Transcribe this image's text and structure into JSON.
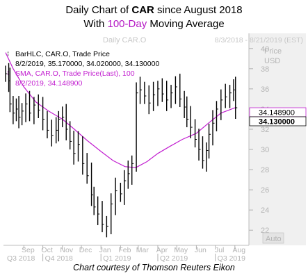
{
  "title": {
    "line1_prefix": "Daily Chart of ",
    "line1_ticker": "CAR",
    "line1_suffix": " since August 2018",
    "line2_prefix": "With ",
    "line2_highlight": "100-Day",
    "line2_suffix": " Moving Average"
  },
  "chart_header": {
    "watermark": "Daily CAR.O",
    "date_range": "8/3/2018 - 8/21/2019 (EST)"
  },
  "legend": {
    "bar_series": "BarHLC, CAR.O, Trade Price",
    "bar_values": "8/2/2019, 35.170000, 34.020000, 34.130000",
    "sma_series": "SMA, CAR.O, Trade Price(Last),  100",
    "sma_values": "8/2/2019, 34.148900"
  },
  "axis": {
    "price_label": "Price",
    "currency_label": "USD",
    "auto_label": "Auto"
  },
  "credit": "Chart courtesy of Thomson Reuters Eikon",
  "colors": {
    "price_bars": "#000000",
    "sma_line": "#c21fd0",
    "plot_background": "#ffffff",
    "axis_panel": "#ececec"
  },
  "chart_data": {
    "type": "line",
    "x_ticks": [
      "Sep",
      "Oct",
      "Nov",
      "Dec",
      "Jan",
      "Feb",
      "Mar",
      "Apr",
      "May",
      "Jun",
      "Jul",
      "Aug"
    ],
    "quarter_ticks": [
      "Q3 2018",
      "Q4 2018",
      "Q1 2019",
      "Q2 2019",
      "Q3 2019"
    ],
    "y_ticks": [
      22,
      24,
      26,
      28,
      30,
      32,
      34,
      36,
      38,
      40
    ],
    "ylim": [
      20.5,
      41.5
    ],
    "grid": false,
    "last_price_label": "34.130000",
    "sma_label": "34.148900",
    "series": [
      {
        "name": "BarHLC, CAR.O, Trade Price",
        "style": "hlc-bars",
        "points": [
          [
            "2018-08-03",
            37.5
          ],
          [
            "2018-08-08",
            36.8
          ],
          [
            "2018-08-10",
            34.5
          ],
          [
            "2018-08-15",
            33.6
          ],
          [
            "2018-08-20",
            34.0
          ],
          [
            "2018-08-24",
            33.2
          ],
          [
            "2018-08-29",
            33.8
          ],
          [
            "2018-09-04",
            34.5
          ],
          [
            "2018-09-10",
            33.6
          ],
          [
            "2018-09-17",
            34.4
          ],
          [
            "2018-09-24",
            33.9
          ],
          [
            "2018-10-01",
            33.0
          ],
          [
            "2018-10-08",
            31.9
          ],
          [
            "2018-10-15",
            31.4
          ],
          [
            "2018-10-22",
            31.9
          ],
          [
            "2018-10-26",
            33.0
          ],
          [
            "2018-11-01",
            33.2
          ],
          [
            "2018-11-07",
            32.0
          ],
          [
            "2018-11-13",
            30.8
          ],
          [
            "2018-11-19",
            29.6
          ],
          [
            "2018-11-26",
            30.5
          ],
          [
            "2018-12-03",
            28.6
          ],
          [
            "2018-12-10",
            27.4
          ],
          [
            "2018-12-17",
            25.5
          ],
          [
            "2018-12-21",
            24.3
          ],
          [
            "2018-12-27",
            23.6
          ],
          [
            "2019-01-03",
            22.6
          ],
          [
            "2019-01-10",
            22.4
          ],
          [
            "2019-01-17",
            24.6
          ],
          [
            "2019-01-24",
            25.9
          ],
          [
            "2019-02-01",
            25.6
          ],
          [
            "2019-02-07",
            26.9
          ],
          [
            "2019-02-13",
            27.6
          ],
          [
            "2019-02-19",
            28.6
          ],
          [
            "2019-02-26",
            35.6
          ],
          [
            "2019-03-04",
            35.9
          ],
          [
            "2019-03-11",
            35.3
          ],
          [
            "2019-03-18",
            34.6
          ],
          [
            "2019-03-25",
            35.4
          ],
          [
            "2019-04-01",
            36.0
          ],
          [
            "2019-04-08",
            35.5
          ],
          [
            "2019-04-15",
            34.9
          ],
          [
            "2019-04-22",
            35.6
          ],
          [
            "2019-04-29",
            36.2
          ],
          [
            "2019-05-06",
            35.0
          ],
          [
            "2019-05-13",
            34.2
          ],
          [
            "2019-05-17",
            33.0
          ],
          [
            "2019-05-23",
            32.2
          ],
          [
            "2019-05-30",
            31.0
          ],
          [
            "2019-06-05",
            30.0
          ],
          [
            "2019-06-11",
            28.9
          ],
          [
            "2019-06-17",
            29.9
          ],
          [
            "2019-06-21",
            31.5
          ],
          [
            "2019-06-27",
            32.6
          ],
          [
            "2019-07-03",
            34.0
          ],
          [
            "2019-07-10",
            34.9
          ],
          [
            "2019-07-17",
            35.2
          ],
          [
            "2019-07-24",
            35.6
          ],
          [
            "2019-07-30",
            35.9
          ],
          [
            "2019-08-02",
            34.13
          ]
        ]
      },
      {
        "name": "SMA, CAR.O, Trade Price(Last),  100",
        "style": "line",
        "points": [
          [
            "2018-08-03",
            39.6
          ],
          [
            "2018-08-15",
            38.0
          ],
          [
            "2018-09-01",
            36.2
          ],
          [
            "2018-09-20",
            34.7
          ],
          [
            "2018-10-10",
            33.8
          ],
          [
            "2018-11-01",
            33.0
          ],
          [
            "2018-11-20",
            32.0
          ],
          [
            "2018-12-10",
            30.9
          ],
          [
            "2019-01-01",
            29.8
          ],
          [
            "2019-01-20",
            28.9
          ],
          [
            "2019-02-08",
            28.3
          ],
          [
            "2019-02-25",
            28.2
          ],
          [
            "2019-03-15",
            28.8
          ],
          [
            "2019-04-01",
            29.6
          ],
          [
            "2019-04-20",
            30.3
          ],
          [
            "2019-05-10",
            31.0
          ],
          [
            "2019-06-01",
            31.6
          ],
          [
            "2019-06-20",
            32.6
          ],
          [
            "2019-07-10",
            33.6
          ],
          [
            "2019-08-02",
            34.1489
          ]
        ]
      }
    ]
  }
}
